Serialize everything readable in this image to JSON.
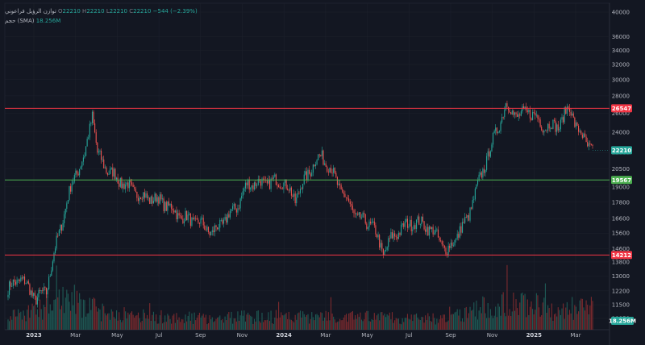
{
  "legend": {
    "symbol_name": "توازن الرؤيل فراعوني",
    "open_label": "O",
    "open_value": "22210",
    "high_label": "H",
    "high_value": "22210",
    "low_label": "L",
    "low_value": "22210",
    "close_label": "C",
    "close_value": "22210",
    "change": "−544 (−2.39%)",
    "volume_label": "حجم (SMA)",
    "volume_value": "18.256M"
  },
  "colors": {
    "background": "#131722",
    "grid": "#1e222d",
    "up": "#26a69a",
    "down": "#ef5350",
    "resistance": "#f23645",
    "support": "#4caf50",
    "volume_up": "#1f5a55",
    "volume_down": "#7a2a2e"
  },
  "chart_data": {
    "type": "candlestick",
    "y_scale": "log",
    "price_axis_ticks": [
      40000,
      36000,
      34000,
      32000,
      30000,
      28000,
      26000,
      24000,
      22000,
      20500,
      19000,
      17800,
      16600,
      15600,
      14600,
      13800,
      13000,
      12200,
      11500,
      10850
    ],
    "x_tick_labels": [
      {
        "label": "2023",
        "bold": true
      },
      {
        "label": "Mar",
        "bold": false
      },
      {
        "label": "May",
        "bold": false
      },
      {
        "label": "Jul",
        "bold": false
      },
      {
        "label": "Sep",
        "bold": false
      },
      {
        "label": "Nov",
        "bold": false
      },
      {
        "label": "2024",
        "bold": true
      },
      {
        "label": "Mar",
        "bold": false
      },
      {
        "label": "May",
        "bold": false
      },
      {
        "label": "Jul",
        "bold": false
      },
      {
        "label": "Sep",
        "bold": false
      },
      {
        "label": "Nov",
        "bold": false
      },
      {
        "label": "2025",
        "bold": true
      },
      {
        "label": "Mar",
        "bold": false
      }
    ],
    "horizontal_lines": [
      {
        "value": 26547,
        "label": "26547",
        "kind": "resistance"
      },
      {
        "value": 19567,
        "label": "19567",
        "kind": "support"
      },
      {
        "value": 14212,
        "label": "14212",
        "kind": "resistance"
      }
    ],
    "last_price": {
      "value": 22210,
      "label": "22210"
    },
    "volume_tag": {
      "label": "18.256M"
    },
    "trend_path": [
      [
        0,
        12300
      ],
      [
        10,
        12900
      ],
      [
        22,
        11800
      ],
      [
        30,
        12200
      ],
      [
        42,
        16300
      ],
      [
        52,
        19900
      ],
      [
        60,
        21600
      ],
      [
        66,
        26000
      ],
      [
        70,
        21800
      ],
      [
        78,
        20400
      ],
      [
        90,
        19300
      ],
      [
        104,
        18300
      ],
      [
        120,
        17900
      ],
      [
        136,
        16700
      ],
      [
        150,
        16300
      ],
      [
        160,
        15600
      ],
      [
        170,
        16500
      ],
      [
        180,
        17600
      ],
      [
        188,
        19300
      ],
      [
        200,
        19300
      ],
      [
        215,
        19500
      ],
      [
        225,
        18000
      ],
      [
        232,
        19500
      ],
      [
        240,
        21100
      ],
      [
        246,
        21700
      ],
      [
        252,
        20600
      ],
      [
        262,
        18500
      ],
      [
        274,
        16600
      ],
      [
        285,
        16200
      ],
      [
        294,
        14300
      ],
      [
        300,
        15200
      ],
      [
        308,
        15900
      ],
      [
        318,
        16400
      ],
      [
        328,
        16100
      ],
      [
        336,
        15400
      ],
      [
        344,
        14400
      ],
      [
        350,
        15200
      ],
      [
        360,
        16600
      ],
      [
        370,
        19700
      ],
      [
        382,
        23800
      ],
      [
        390,
        26900
      ],
      [
        400,
        25600
      ],
      [
        408,
        26300
      ],
      [
        420,
        24600
      ],
      [
        432,
        24700
      ],
      [
        440,
        26800
      ],
      [
        446,
        24200
      ],
      [
        452,
        23200
      ],
      [
        458,
        22200
      ]
    ],
    "volume_profile": [
      [
        0,
        0.35
      ],
      [
        30,
        0.55
      ],
      [
        45,
        0.85
      ],
      [
        70,
        0.5
      ],
      [
        100,
        0.35
      ],
      [
        150,
        0.3
      ],
      [
        200,
        0.33
      ],
      [
        250,
        0.35
      ],
      [
        300,
        0.3
      ],
      [
        340,
        0.28
      ],
      [
        370,
        0.55
      ],
      [
        400,
        0.7
      ],
      [
        430,
        0.5
      ],
      [
        458,
        0.6
      ]
    ]
  }
}
